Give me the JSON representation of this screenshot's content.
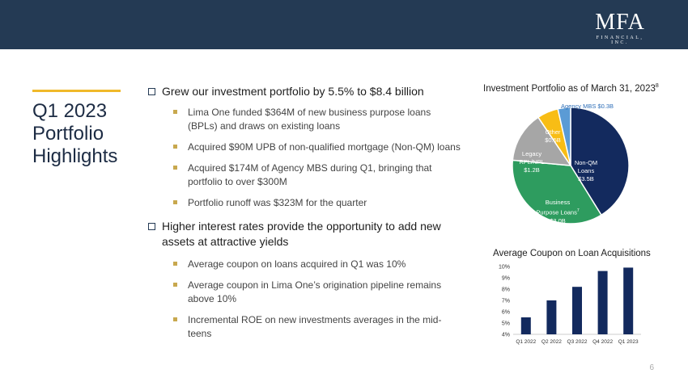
{
  "header": {
    "logo_main": "MFA",
    "logo_sub": "FINANCIAL, INC."
  },
  "title": "Q1 2023 Portfolio Highlights",
  "bullets": [
    {
      "text": "Grew our investment portfolio by 5.5% to $8.4 billion",
      "sub": [
        "Lima One funded $364M of new business purpose loans (BPLs) and draws on existing loans",
        "Acquired $90M UPB of non-qualified mortgage (Non-QM) loans",
        "Acquired $174M of Agency MBS during Q1, bringing that portfolio to over $300M",
        "Portfolio runoff was $323M for the quarter"
      ]
    },
    {
      "text": "Higher interest rates provide the opportunity to add new assets at attractive yields",
      "sub": [
        "Average coupon on loans acquired in Q1 was 10%",
        "Average coupon in Lima One’s origination pipeline remains above 10%",
        "Incremental ROE on new investments averages in the mid-teens"
      ]
    }
  ],
  "page_number": "6",
  "chart_data": [
    {
      "type": "pie",
      "title": "Investment Portfolio as of March 31, 2023",
      "title_footnote": "8",
      "slices": [
        {
          "label": "Non-QM Loans",
          "value_label": "$3.5B",
          "value": 3.5,
          "color": "#132a5e",
          "text_color": "#ffffff"
        },
        {
          "label": "Business Purpose Loans",
          "footnote": "7",
          "value_label": "$3.0B",
          "value": 3.0,
          "color": "#2e9c5f",
          "text_color": "#ffffff"
        },
        {
          "label": "Legacy RPL/NPL",
          "value_label": "$1.2B",
          "value": 1.2,
          "color": "#a6a6a6",
          "text_color": "#ffffff"
        },
        {
          "label": "Other",
          "value_label": "$0.5B",
          "value": 0.5,
          "color": "#f8bd15",
          "text_color": "#ffffff"
        },
        {
          "label": "Agency MBS",
          "value_label": "$0.3B",
          "value": 0.3,
          "color": "#5b9bd5",
          "text_color": "#2f6fb8"
        }
      ]
    },
    {
      "type": "bar",
      "title": "Average Coupon on Loan Acquisitions",
      "categories": [
        "Q1 2022",
        "Q2 2022",
        "Q3 2022",
        "Q4 2022",
        "Q1 2023"
      ],
      "values": [
        5.5,
        7.0,
        8.2,
        9.6,
        9.9
      ],
      "ylim": [
        4,
        10
      ],
      "yticks": [
        "4%",
        "5%",
        "6%",
        "7%",
        "8%",
        "9%",
        "10%"
      ],
      "grid": false,
      "bar_color": "#132a5e"
    }
  ]
}
